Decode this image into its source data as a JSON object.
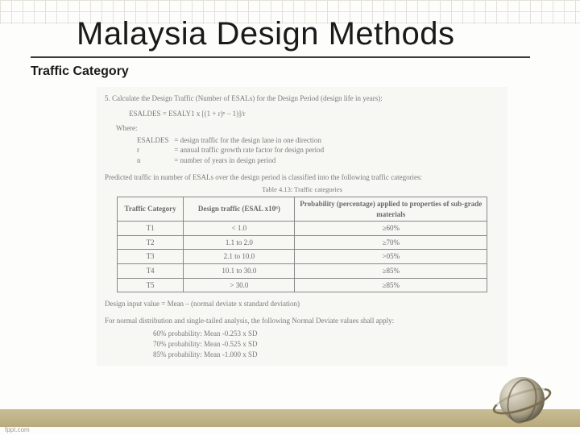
{
  "slide": {
    "title": "Malaysia Design Methods",
    "subtitle": "Traffic Category"
  },
  "doc": {
    "step_num": "5.",
    "step_text": "Calculate the Design Traffic (Number of ESALs) for the Design Period (design life in years):",
    "formula": "ESALDES = ESALY1 x [(1 + r)ⁿ – 1)]/r",
    "where_label": "Where:",
    "defs": [
      {
        "sym": "ESALDES",
        "eq": "= design traffic for the design lane in one direction"
      },
      {
        "sym": "r",
        "eq": "= annual traffic growth rate factor for design period"
      },
      {
        "sym": "n",
        "eq": "= number of years in design period"
      }
    ],
    "para_predicted": "Predicted traffic in number of ESALs over the design period is classified into the following traffic categories:",
    "table_caption": "Table 4.13: Traffic categories",
    "table": {
      "headers": [
        "Traffic Category",
        "Design traffic (ESAL x10⁶)",
        "Probability (percentage) applied to properties of sub-grade materials"
      ],
      "rows": [
        [
          "T1",
          "< 1.0",
          "≥60%"
        ],
        [
          "T2",
          "1.1 to 2.0",
          "≥70%"
        ],
        [
          "T3",
          "2.1 to 10.0",
          ">05%"
        ],
        [
          "T4",
          "10.1 to 30.0",
          "≥85%"
        ],
        [
          "T5",
          "> 30.0",
          "≥85%"
        ]
      ]
    },
    "design_input": "Design input value = Mean – (normal deviate x standard deviation)",
    "normal_intro": "For normal distribution and single-tailed analysis, the following Normal Deviate values shall apply:",
    "normal_values": [
      "60% probability: Mean -0.253 x SD",
      "70% probability: Mean -0.525 x SD",
      "85% probability: Mean -1.000 x SD"
    ]
  },
  "footer": {
    "fppt": "fppt.com"
  },
  "style": {
    "title_fontsize": 40,
    "subtitle_fontsize": 16,
    "doc_fontsize": 9,
    "bg_color": "#fdfdfb",
    "band_color": "#b8aa7c",
    "doc_bg": "#f7f7f4",
    "doc_text_color": "#7a7a7a",
    "table_border": "#888888"
  }
}
